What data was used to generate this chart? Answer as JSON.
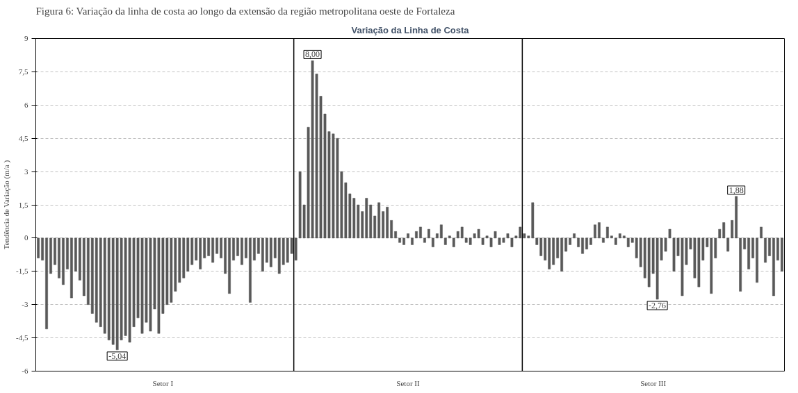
{
  "chart_data": {
    "type": "bar",
    "title": "Variação da Linha de Costa",
    "ylabel": "Tendência de Variação (m/a )",
    "annotations": [
      "Figura 6: Variação da linha de costa ao longo da extensão da região metropolitana oeste de Fortaleza"
    ],
    "value_labels": [
      null,
      null,
      null,
      null,
      null,
      null,
      null,
      null,
      null,
      null,
      null,
      null,
      null,
      null,
      null,
      null,
      null,
      null,
      null,
      "-5,04",
      null,
      null,
      null,
      null,
      null,
      null,
      null,
      null,
      null,
      null,
      null,
      null,
      null,
      null,
      null,
      null,
      null,
      null,
      null,
      null,
      null,
      null,
      null,
      null,
      null,
      null,
      null,
      null,
      null,
      null,
      null,
      null,
      null,
      null,
      null,
      null,
      null,
      null,
      null,
      null,
      null,
      null,
      null,
      null,
      null,
      null,
      "8,00",
      null,
      null,
      null,
      null,
      null,
      null,
      null,
      null,
      null,
      null,
      null,
      null,
      null,
      null,
      null,
      null,
      null,
      null,
      null,
      null,
      null,
      null,
      null,
      null,
      null,
      null,
      null,
      null,
      null,
      null,
      null,
      null,
      null,
      null,
      null,
      null,
      null,
      null,
      null,
      null,
      null,
      null,
      null,
      null,
      null,
      null,
      null,
      null,
      null,
      null,
      null,
      null,
      null,
      null,
      null,
      null,
      null,
      null,
      null,
      null,
      null,
      null,
      null,
      null,
      null,
      null,
      null,
      null,
      null,
      null,
      null,
      null,
      null,
      null,
      null,
      null,
      null,
      null,
      null,
      null,
      null,
      null,
      "-2,76",
      null,
      null,
      null,
      null,
      null,
      null,
      null,
      null,
      null,
      null,
      null,
      null,
      null,
      null,
      null,
      null,
      null,
      null,
      "1,88",
      null,
      null,
      null,
      null,
      null,
      null,
      null,
      null,
      null,
      null,
      null
    ],
    "color": "#595959",
    "categories": [
      null,
      null,
      null,
      null,
      null,
      null,
      null,
      null,
      null,
      null,
      null,
      null,
      null,
      null,
      null,
      null,
      null,
      null,
      null,
      null,
      null,
      null,
      null,
      null,
      null,
      null,
      null,
      null,
      null,
      null,
      "Setor I",
      null,
      null,
      null,
      null,
      null,
      null,
      null,
      null,
      null,
      null,
      null,
      null,
      null,
      null,
      null,
      null,
      null,
      null,
      null,
      null,
      null,
      null,
      null,
      null,
      null,
      null,
      null,
      null,
      null,
      null,
      null,
      null,
      null,
      null,
      null,
      null,
      null,
      null,
      null,
      null,
      null,
      null,
      null,
      null,
      null,
      null,
      null,
      null,
      null,
      null,
      null,
      null,
      null,
      null,
      null,
      null,
      null,
      null,
      "Setor II",
      null,
      null,
      null,
      null,
      null,
      null,
      null,
      null,
      null,
      null,
      null,
      null,
      null,
      null,
      null,
      null,
      null,
      null,
      null,
      null,
      null,
      null,
      null,
      null,
      null,
      null,
      null,
      null,
      null,
      null,
      null,
      null,
      null,
      null,
      null,
      null,
      null,
      null,
      null,
      null,
      null,
      null,
      null,
      null,
      null,
      null,
      null,
      null,
      null,
      null,
      null,
      null,
      null,
      null,
      null,
      null,
      null,
      null,
      "Setor III",
      null,
      null,
      null,
      null,
      null,
      null,
      null,
      null,
      null,
      null,
      null,
      null,
      null,
      null,
      null,
      null,
      null,
      null,
      null,
      null,
      null,
      null,
      null,
      null,
      null,
      null,
      null,
      null,
      null,
      null,
      null
    ],
    "values": [
      -0.9,
      -1.0,
      -4.1,
      -1.6,
      -1.2,
      -1.8,
      -2.1,
      -1.4,
      -2.7,
      -1.5,
      -1.9,
      -2.6,
      -3.0,
      -3.4,
      -3.8,
      -4.0,
      -4.3,
      -4.6,
      -4.8,
      -5.04,
      -4.6,
      -4.4,
      -4.7,
      -4.0,
      -3.6,
      -4.3,
      -3.8,
      -4.2,
      -3.2,
      -4.3,
      -3.4,
      -3.0,
      -2.9,
      -2.4,
      -2.0,
      -1.8,
      -1.5,
      -1.2,
      -1.0,
      -1.4,
      -0.9,
      -0.8,
      -1.1,
      -0.7,
      -0.9,
      -1.6,
      -2.5,
      -1.0,
      -0.8,
      -1.2,
      -0.9,
      -2.9,
      -1.0,
      -0.7,
      -1.5,
      -1.1,
      -1.3,
      -0.9,
      -1.6,
      -1.2,
      -1.1,
      -0.7,
      -1.0,
      3.0,
      1.5,
      5.0,
      8.0,
      7.4,
      6.4,
      5.6,
      4.8,
      4.7,
      4.5,
      3.0,
      2.5,
      2.0,
      1.8,
      1.5,
      1.2,
      1.8,
      1.5,
      1.0,
      1.6,
      1.2,
      1.4,
      0.8,
      0.3,
      -0.2,
      -0.3,
      0.2,
      -0.3,
      0.3,
      0.5,
      -0.2,
      0.4,
      -0.4,
      0.2,
      0.6,
      -0.3,
      0.1,
      -0.4,
      0.3,
      0.5,
      -0.2,
      -0.3,
      0.2,
      0.4,
      -0.3,
      0.1,
      -0.4,
      0.3,
      -0.3,
      -0.2,
      0.2,
      -0.4,
      0.1,
      0.5,
      0.2,
      0.1,
      1.6,
      -0.3,
      -0.8,
      -1.0,
      -1.4,
      -1.2,
      -0.9,
      -1.5,
      -0.6,
      -0.3,
      0.2,
      -0.4,
      -0.7,
      -0.5,
      -0.3,
      0.6,
      0.7,
      -0.2,
      0.5,
      0.1,
      -0.3,
      0.2,
      0.1,
      -0.4,
      -0.2,
      -0.9,
      -1.3,
      -1.8,
      -2.2,
      -1.6,
      -2.76,
      -1.0,
      -0.6,
      0.4,
      -1.5,
      -0.8,
      -2.6,
      -1.2,
      -0.5,
      -1.8,
      -2.2,
      -1.0,
      -0.4,
      -2.5,
      -0.9,
      0.4,
      0.7,
      -0.6,
      0.8,
      1.88,
      -2.4,
      -0.5,
      -1.4,
      -0.9,
      -2.0,
      0.5,
      -1.1,
      -0.8,
      -2.6,
      -1.0,
      -1.5
    ],
    "ylim": [
      -6,
      9
    ],
    "yticks": [
      9,
      {
        "value": 7.5,
        "label": "7,5"
      },
      6,
      {
        "value": 4.5,
        "label": "4,5"
      },
      3,
      {
        "value": 1.5,
        "label": "1,5"
      },
      0,
      {
        "value": -1.5,
        "label": "-1,5"
      },
      -3,
      {
        "value": -4.5,
        "label": "-4,5"
      },
      -6
    ],
    "grid": "y"
  }
}
